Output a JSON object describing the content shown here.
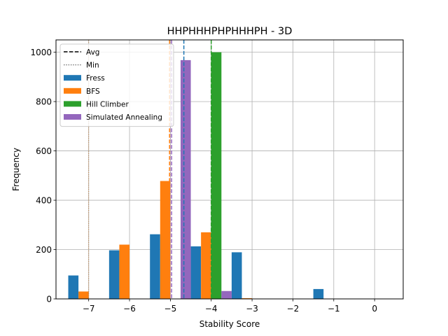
{
  "chart_data": {
    "type": "bar",
    "title": "HHPHHHPHPHHHPH - 3D",
    "xlabel": "Stability Score",
    "ylabel": "Frequency",
    "xlim": [
      -7.8,
      0.7
    ],
    "ylim": [
      0,
      1050
    ],
    "grid": true,
    "legend_position": "top-left",
    "x_ticks": [
      -7,
      -6,
      -5,
      -4,
      -3,
      -2,
      -1,
      0
    ],
    "x_tick_labels": [
      "−7",
      "−6",
      "−5",
      "−4",
      "−3",
      "−2",
      "−1",
      "0"
    ],
    "y_ticks": [
      0,
      200,
      400,
      600,
      800,
      1000
    ],
    "y_tick_labels": [
      "0",
      "200",
      "400",
      "600",
      "800",
      "1000"
    ],
    "bins": [
      -7.5,
      -6.5,
      -5.5,
      -4.5,
      -3.5,
      -2.5,
      -1.5
    ],
    "bin_width": 1.0,
    "series": [
      {
        "name": "Fress",
        "color": "#1f77b4",
        "values": [
          95,
          197,
          262,
          213,
          189,
          0,
          40
        ],
        "avg": -4.67,
        "min": -7.0
      },
      {
        "name": "BFS",
        "color": "#ff7f0e",
        "values": [
          30,
          220,
          478,
          270,
          3,
          0,
          0
        ],
        "avg": -5.02,
        "min": -7.0
      },
      {
        "name": "Hill Climber",
        "color": "#2ca02c",
        "values": [
          0,
          0,
          0,
          1000,
          0,
          0,
          0
        ],
        "avg": -4.0,
        "min": -4.0
      },
      {
        "name": "Simulated Annealing",
        "color": "#9467bd",
        "values": [
          0,
          0,
          968,
          32,
          0,
          0,
          0
        ],
        "avg": -4.97,
        "min": -5.0
      }
    ],
    "legend": [
      {
        "label": "Avg",
        "style": "dashed",
        "color": "#000000"
      },
      {
        "label": "Min",
        "style": "dotted",
        "color": "#808080"
      },
      {
        "label": "Fress",
        "style": "patch",
        "color": "#1f77b4"
      },
      {
        "label": "BFS",
        "style": "patch",
        "color": "#ff7f0e"
      },
      {
        "label": "Hill Climber",
        "style": "patch",
        "color": "#2ca02c"
      },
      {
        "label": "Simulated Annealing",
        "style": "patch",
        "color": "#9467bd"
      }
    ]
  }
}
